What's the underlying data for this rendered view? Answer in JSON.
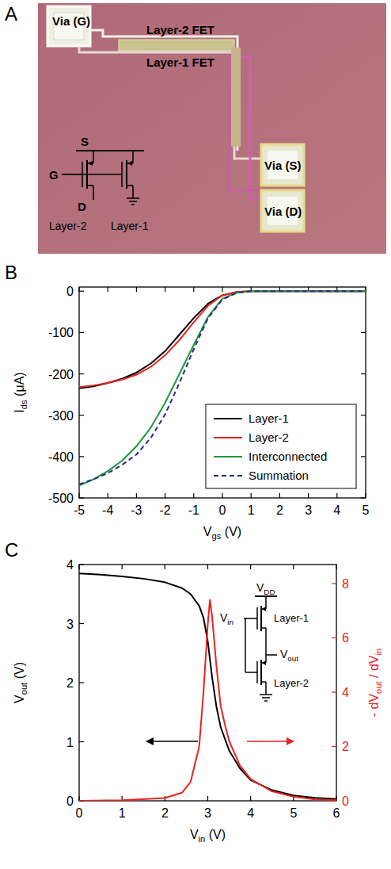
{
  "micrograph": {
    "panel": "A",
    "via_gate": "Via (G)",
    "via_source": "Via (S)",
    "via_drain": "Via (D)",
    "fet_top": "Layer-2 FET",
    "fet_bottom": "Layer-1 FET",
    "circuit": {
      "source": "S",
      "gate": "G",
      "drain": "D",
      "left": "Layer-2",
      "right": "Layer-1"
    }
  },
  "chart_data": [
    {
      "panel": "B",
      "type": "line",
      "x_label": "Vgs (V)",
      "y_label": "Ids (μA)",
      "x": [
        -5,
        -4.5,
        -4,
        -3.5,
        -3,
        -2.5,
        -2,
        -1.5,
        -1,
        -0.5,
        0,
        0.5,
        1,
        1.5,
        2,
        3,
        4,
        5
      ],
      "xlim": [
        -5,
        5
      ],
      "xticks": [
        -5,
        -4,
        -3,
        -2,
        -1,
        0,
        1,
        2,
        3,
        4,
        5
      ],
      "ylim": [
        -500,
        10
      ],
      "yticks": [
        -500,
        -400,
        -300,
        -200,
        -100,
        0
      ],
      "legend": "lower right",
      "series": [
        {
          "name": "Layer-1",
          "color": "#000000",
          "line_style": "solid",
          "values": [
            -235,
            -230,
            -222,
            -212,
            -197,
            -175,
            -145,
            -105,
            -65,
            -30,
            -10,
            -2,
            0,
            0,
            0,
            0,
            0,
            0
          ]
        },
        {
          "name": "Layer-2",
          "color": "#e8231f",
          "line_style": "solid",
          "values": [
            -232,
            -228,
            -222,
            -214,
            -202,
            -183,
            -155,
            -118,
            -75,
            -35,
            -10,
            -2,
            0,
            0,
            0,
            0,
            0,
            0
          ]
        },
        {
          "name": "Interconnected",
          "color": "#1a9a3a",
          "line_style": "solid",
          "values": [
            -470,
            -455,
            -435,
            -410,
            -375,
            -330,
            -270,
            -200,
            -130,
            -62,
            -18,
            -4,
            0,
            0,
            0,
            0,
            0,
            0
          ]
        },
        {
          "name": "Summation",
          "color": "#2a2a8a",
          "line_style": "dashed",
          "values": [
            -467,
            -455,
            -440,
            -420,
            -395,
            -355,
            -298,
            -222,
            -140,
            -65,
            -20,
            -4,
            0,
            0,
            0,
            0,
            0,
            0
          ]
        }
      ]
    },
    {
      "panel": "C",
      "type": "line",
      "x_label": "Vin (V)",
      "y_label": "Vout (V)",
      "y2_label": "- dVout / dVin",
      "xlim": [
        0,
        6
      ],
      "xticks": [
        0,
        1,
        2,
        3,
        4,
        5,
        6
      ],
      "ylim": [
        0,
        4
      ],
      "yticks": [
        0,
        1,
        2,
        3,
        4
      ],
      "y2lim": [
        0,
        8.7
      ],
      "y2ticks": [
        0,
        2,
        4,
        6,
        8
      ],
      "circuit": {
        "supply": "VDD",
        "input": "Vin",
        "top": "Layer-1",
        "output": "Vout",
        "bottom": "Layer-2"
      },
      "series": [
        {
          "color": "#000000",
          "line_style": "solid",
          "x": [
            0,
            0.5,
            1,
            1.5,
            2,
            2.4,
            2.6,
            2.8,
            2.9,
            3.0,
            3.1,
            3.2,
            3.3,
            3.5,
            3.75,
            4,
            4.5,
            5,
            5.5,
            6
          ],
          "values": [
            3.85,
            3.83,
            3.8,
            3.76,
            3.7,
            3.6,
            3.5,
            3.3,
            3.1,
            2.7,
            2.1,
            1.6,
            1.25,
            0.85,
            0.55,
            0.35,
            0.18,
            0.09,
            0.05,
            0.03
          ]
        },
        {
          "color": "#e8231f",
          "line_style": "solid",
          "axis": "y2",
          "x": [
            0,
            1,
            2,
            2.4,
            2.6,
            2.8,
            2.9,
            3.0,
            3.05,
            3.1,
            3.2,
            3.3,
            3.4,
            3.5,
            3.75,
            4,
            4.5,
            5,
            5.5,
            6
          ],
          "values": [
            0,
            0.02,
            0.1,
            0.3,
            0.7,
            2.0,
            4.0,
            6.5,
            7.4,
            6.8,
            5.0,
            3.5,
            2.8,
            2.2,
            1.3,
            0.8,
            0.35,
            0.15,
            0.05,
            0.02
          ]
        }
      ]
    }
  ]
}
